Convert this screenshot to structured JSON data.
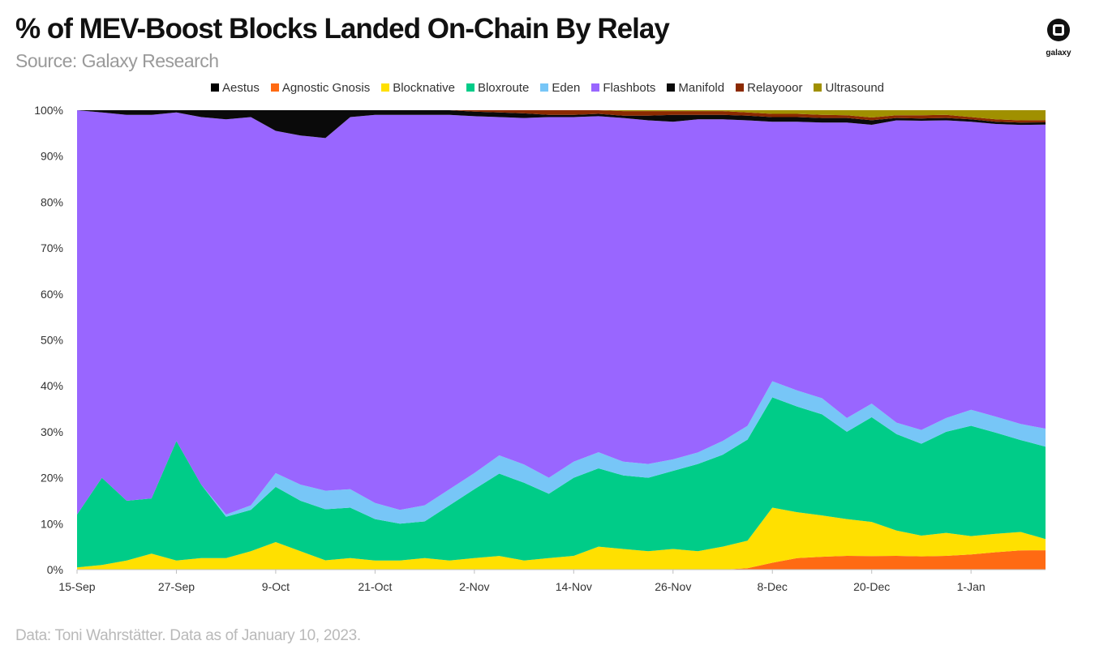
{
  "header": {
    "title": "% of MEV-Boost Blocks Landed On-Chain By Relay",
    "subtitle": "Source: Galaxy Research"
  },
  "logo": {
    "text": "galaxy",
    "icon": "galaxy-logo-icon"
  },
  "footer": {
    "note": "Data: Toni Wahrstätter. Data as of January 10, 2023."
  },
  "chart_data": {
    "type": "area",
    "stacked": true,
    "normalized": true,
    "x_ticks": [
      "15-Sep",
      "27-Sep",
      "9-Oct",
      "21-Oct",
      "2-Nov",
      "14-Nov",
      "26-Nov",
      "8-Dec",
      "20-Dec",
      "1-Jan"
    ],
    "y_ticks": [
      "0%",
      "10%",
      "20%",
      "30%",
      "40%",
      "50%",
      "60%",
      "70%",
      "80%",
      "90%",
      "100%"
    ],
    "ylim": [
      0,
      100
    ],
    "legend_position": "top",
    "grid": false,
    "x": [
      "15-Sep",
      "18-Sep",
      "21-Sep",
      "24-Sep",
      "27-Sep",
      "30-Sep",
      "3-Oct",
      "6-Oct",
      "9-Oct",
      "12-Oct",
      "15-Oct",
      "18-Oct",
      "21-Oct",
      "24-Oct",
      "27-Oct",
      "30-Oct",
      "2-Nov",
      "5-Nov",
      "8-Nov",
      "11-Nov",
      "14-Nov",
      "17-Nov",
      "20-Nov",
      "23-Nov",
      "26-Nov",
      "29-Nov",
      "2-Dec",
      "5-Dec",
      "8-Dec",
      "11-Dec",
      "14-Dec",
      "17-Dec",
      "20-Dec",
      "23-Dec",
      "26-Dec",
      "29-Dec",
      "1-Jan",
      "4-Jan",
      "7-Jan",
      "10-Jan"
    ],
    "series": [
      {
        "name": "Agnostic Gnosis",
        "color": "#ff6a13",
        "values": [
          0,
          0,
          0,
          0,
          0,
          0,
          0,
          0,
          0,
          0,
          0,
          0,
          0,
          0,
          0,
          0,
          0,
          0,
          0,
          0,
          0,
          0,
          0,
          0,
          0,
          0,
          0,
          0.3,
          1.5,
          2.5,
          2.8,
          3.0,
          3.0,
          3.0,
          2.9,
          3.0,
          3.3,
          3.8,
          4.2,
          4.3
        ]
      },
      {
        "name": "Blocknative",
        "color": "#ffe000",
        "values": [
          0.5,
          1.0,
          2.0,
          3.5,
          2.0,
          2.5,
          2.5,
          4.0,
          6.0,
          4.0,
          2.0,
          2.5,
          2.0,
          2.0,
          2.5,
          2.0,
          2.5,
          3.0,
          2.0,
          2.5,
          3.0,
          5.0,
          4.5,
          4.0,
          4.5,
          4.0,
          5.0,
          6.0,
          12.0,
          10.0,
          9.0,
          8.0,
          7.5,
          5.5,
          4.5,
          5.0,
          4.0,
          4.0,
          4.0,
          2.5
        ]
      },
      {
        "name": "Bloxroute",
        "color": "#00cc88",
        "values": [
          11.5,
          19.0,
          13.0,
          12.0,
          26.0,
          16.0,
          9.0,
          9.0,
          12.0,
          11.0,
          11.0,
          11.0,
          9.0,
          8.0,
          8.0,
          12.0,
          15.0,
          18.0,
          17.0,
          14.0,
          17.0,
          17.0,
          16.0,
          16.0,
          17.0,
          19.0,
          20.0,
          22.0,
          24.0,
          23.0,
          22.0,
          19.0,
          23.0,
          21.0,
          20.0,
          22.0,
          24.0,
          22.0,
          20.0,
          20.5
        ]
      },
      {
        "name": "Eden",
        "color": "#77c6f7",
        "values": [
          0,
          0,
          0,
          0,
          0,
          0,
          0.5,
          1.0,
          3.0,
          3.5,
          4.0,
          4.0,
          3.5,
          3.0,
          3.5,
          3.5,
          3.5,
          4.0,
          4.0,
          3.5,
          3.5,
          3.5,
          3.0,
          3.0,
          2.5,
          2.5,
          3.0,
          3.0,
          3.5,
          3.5,
          3.5,
          3.0,
          3.0,
          2.5,
          3.0,
          3.0,
          3.5,
          3.5,
          3.5,
          4.0
        ]
      },
      {
        "name": "Flashbots",
        "color": "#9966ff",
        "values": [
          88.0,
          79.5,
          84.0,
          83.5,
          71.5,
          80.0,
          86.0,
          84.5,
          74.5,
          76.0,
          76.0,
          81.0,
          84.5,
          86.0,
          85.0,
          81.5,
          77.7,
          74.0,
          75.8,
          78.5,
          75.0,
          73.0,
          74.8,
          74.8,
          73.5,
          72.5,
          70.0,
          66.5,
          56.5,
          58.5,
          60.0,
          64.3,
          61.3,
          65.8,
          67.3,
          64.8,
          62.7,
          63.7,
          65.1,
          67.5
        ]
      },
      {
        "name": "Aestus",
        "color": "#000000",
        "values": [
          0,
          0,
          0,
          0,
          0,
          0,
          0,
          0,
          0,
          0,
          0,
          0,
          0,
          0,
          0,
          0,
          0,
          0,
          0,
          0,
          0,
          0,
          0,
          0,
          0,
          0,
          0,
          0,
          0,
          0,
          0,
          0,
          0,
          0,
          0,
          0,
          0,
          0,
          0,
          0
        ]
      },
      {
        "name": "Manifold",
        "color": "#0a0a0a",
        "values": [
          0,
          0.5,
          1.0,
          1.0,
          0.5,
          1.5,
          2.0,
          1.5,
          4.5,
          5.5,
          6.0,
          1.5,
          1.0,
          1.0,
          1.0,
          1.0,
          1.0,
          1.0,
          1.0,
          0.5,
          0.5,
          0.5,
          0.5,
          1.0,
          1.5,
          1.0,
          1.0,
          1.0,
          1.0,
          1.0,
          1.0,
          1.0,
          1.0,
          0.5,
          0.5,
          0.5,
          0.5,
          0.5,
          0.5,
          0.5
        ]
      },
      {
        "name": "Relayooor",
        "color": "#8b2a00",
        "values": [
          0,
          0,
          0,
          0,
          0,
          0,
          0,
          0,
          0,
          0,
          0,
          0,
          0,
          0,
          0,
          0,
          0.3,
          0.5,
          0.7,
          1.0,
          1.0,
          0.8,
          1.0,
          1.0,
          0.8,
          0.8,
          0.8,
          0.7,
          0.7,
          0.7,
          0.7,
          0.6,
          0.6,
          0.6,
          0.7,
          0.7,
          0.5,
          0.5,
          0.5,
          0.5
        ]
      },
      {
        "name": "Ultrasound",
        "color": "#a09000",
        "values": [
          0,
          0,
          0,
          0,
          0,
          0,
          0,
          0,
          0,
          0,
          0,
          0,
          0,
          0,
          0,
          0,
          0,
          0,
          0,
          0,
          0,
          0,
          0.2,
          0.2,
          0.2,
          0.2,
          0.2,
          0.5,
          0.8,
          0.8,
          1.0,
          1.1,
          1.6,
          1.1,
          1.1,
          1.0,
          1.5,
          2.0,
          2.2,
          2.2
        ]
      }
    ]
  }
}
